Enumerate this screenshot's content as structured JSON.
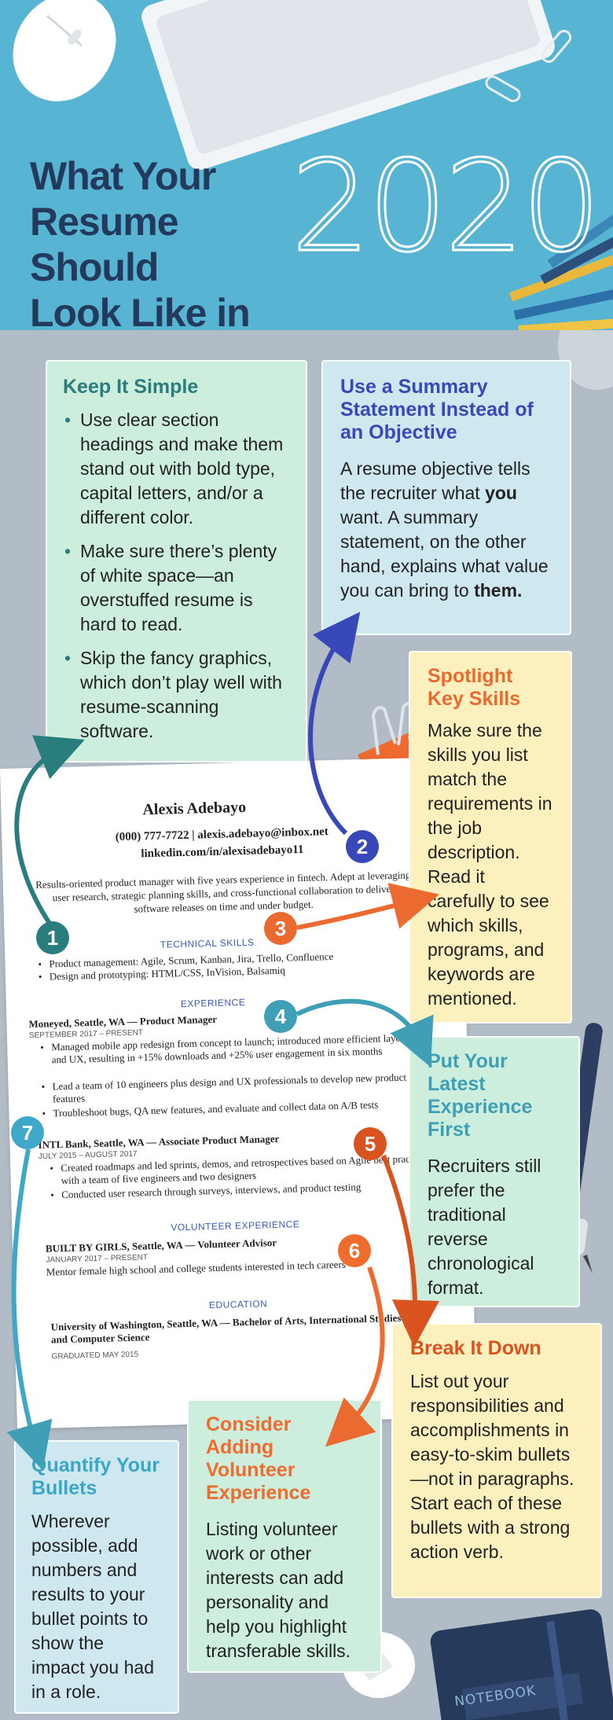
{
  "title_lines": [
    "What Your",
    "Resume Should",
    "Look Like in"
  ],
  "year": "2020",
  "colors": {
    "header": "#58b4d3",
    "background": "#b2bcc6",
    "navy": "#233a5c",
    "teal": "#2a7d7d",
    "indigo": "#3948b8",
    "orange": "#ea6a30",
    "sky": "#3f9fb7"
  },
  "keep_simple": {
    "heading": "Keep It Simple",
    "bullets": [
      "Use clear section headings and make them stand out with bold type, capital letters, and/or a different color.",
      "Make sure there’s plenty of white space—an overstuffed resume is hard to read.",
      "Skip the fancy graphics, which don’t play well with resume-scanning software."
    ]
  },
  "summary": {
    "heading": "Use a Summary Statement Instead of an Objective",
    "text_1": "A resume objective tells the recruiter what ",
    "bold_1": "you",
    "text_2": " want. A summary statement, on the other hand, explains what value you can bring to ",
    "bold_2": "them."
  },
  "spotlight": {
    "heading": "Spotlight Key Skills",
    "body": "Make sure the skills you list match the requirements in the job description. Read it carefully to see which skills, programs, and keywords are mentioned."
  },
  "latest": {
    "heading": "Put Your Latest Experience First",
    "body": "Recruiters still prefer the traditional reverse chronological format."
  },
  "breakdown": {
    "heading": "Break It Down",
    "body": "List out your responsibilities and accomplishments in easy-to-skim bullets—not in paragraphs. Start each of these bullets with a strong action verb."
  },
  "volunteer": {
    "heading": "Consider Adding Volunteer Experience",
    "body": "Listing volunteer work or other interests can add personality and help you highlight transferable skills."
  },
  "quantify": {
    "heading": "Quantify Your Bullets",
    "body": "Wherever possible, add numbers and results to your bullet points to show the impact you had in a role."
  },
  "resume": {
    "name": "Alexis Adebayo",
    "contact": "(000) 777-7722 | alexis.adebayo@inbox.net",
    "linkedin": "linkedin.com/in/alexisadebayo11",
    "summary": "Results-oriented product manager with five years experience in fintech. Adept at leveraging user research, strategic planning skills, and cross-functional collaboration to deliver software releases on time and under budget.",
    "sec_skills": "TECHNICAL SKILLS",
    "skills": [
      "Product management: Agile, Scrum, Kanban, Jira, Trello, Confluence",
      "Design and prototyping: HTML/CSS, InVision, Balsamiq"
    ],
    "sec_experience": "EXPERIENCE",
    "job1_title": "Moneyed, Seattle, WA — Product Manager",
    "job1_dates": "SEPTEMBER 2017 – PRESENT",
    "job1_bullets": [
      "Managed mobile app redesign from concept to launch; introduced more efficient layout and UX, resulting in +15% downloads and +25% user engagement in six months",
      "Lead a team of 10 engineers plus design and UX professionals to develop new product features",
      "Troubleshoot bugs, QA new features, and evaluate and collect data on A/B tests"
    ],
    "job2_title": "INTL Bank, Seattle, WA — Associate Product Manager",
    "job2_dates": "JULY 2015 – AUGUST 2017",
    "job2_bullets": [
      "Created roadmaps and led sprints, demos, and retrospectives based on Agile best practices with a team of five engineers and two designers",
      "Conducted user research through surveys, interviews, and product testing"
    ],
    "sec_volunteer": "VOLUNTEER EXPERIENCE",
    "vol_title": "BUILT BY GIRLS, Seattle, WA — Volunteer Advisor",
    "vol_dates": "JANUARY 2017 – PRESENT",
    "vol_desc": "Mentor female high school and college students interested in tech careers",
    "sec_education": "EDUCATION",
    "edu_title": "University of Washington, Seattle, WA — Bachelor of Arts, International Studies and Computer Science",
    "edu_dates": "GRADUATED MAY 2015"
  },
  "badges": [
    "1",
    "2",
    "3",
    "4",
    "5",
    "6",
    "7"
  ],
  "notebook_label": "NOTEBOOK"
}
